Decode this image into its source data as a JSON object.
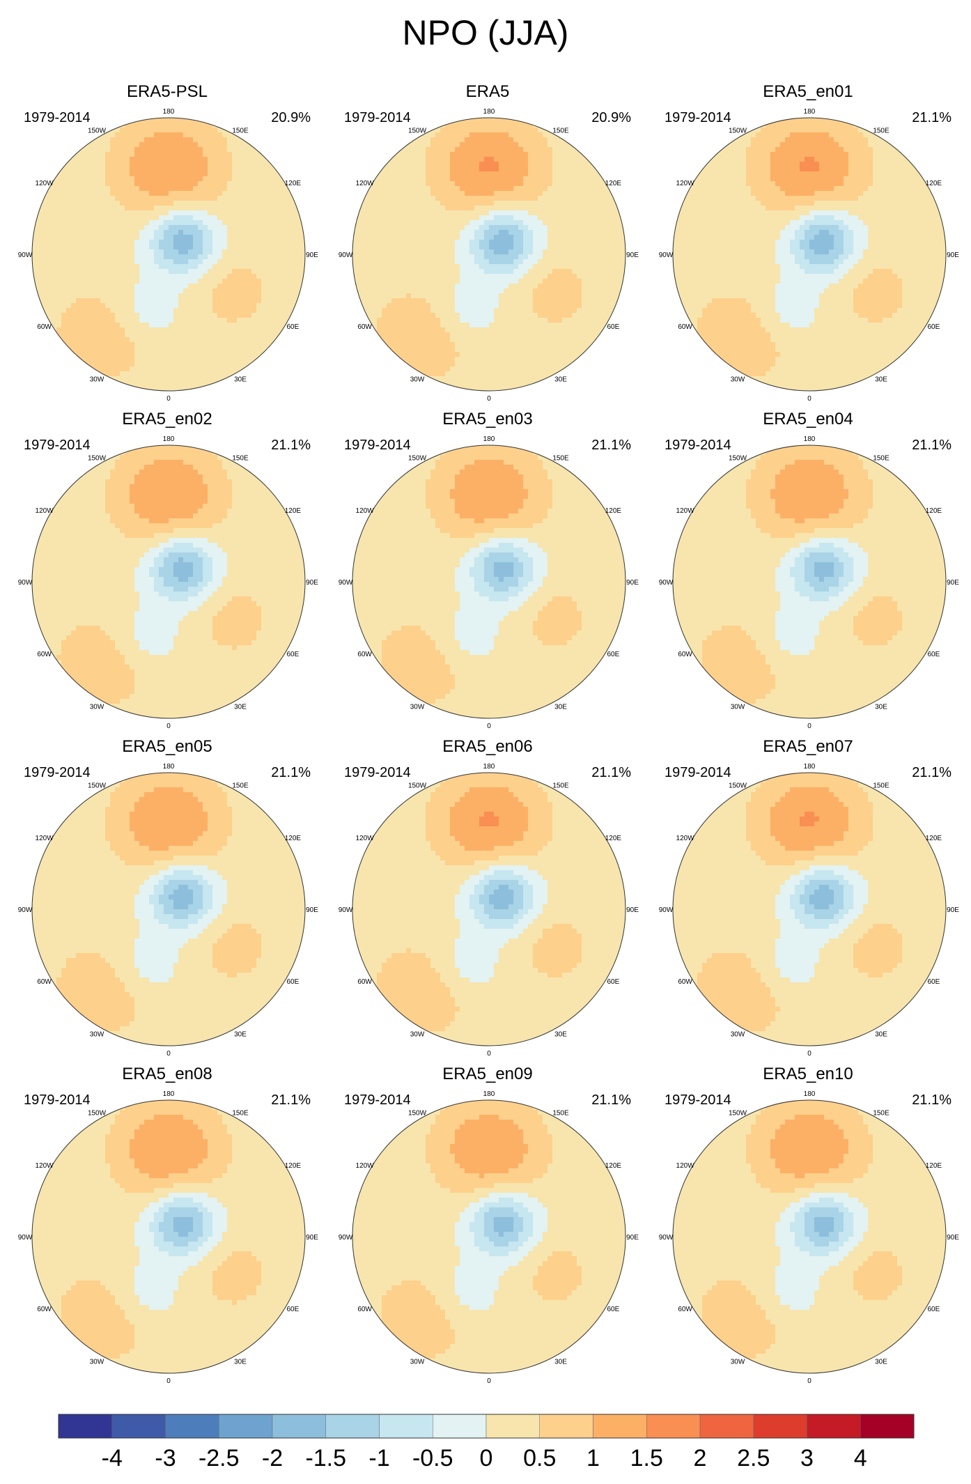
{
  "figure": {
    "title": "NPO (JJA)"
  },
  "chart_data": {
    "type": "heatmap",
    "projection": "north-polar-stereographic",
    "field": "sea level pressure NPO regression pattern",
    "panels": [
      {
        "title": "ERA5-PSL",
        "period": "1979-2014",
        "percent": "20.9%"
      },
      {
        "title": "ERA5",
        "period": "1979-2014",
        "percent": "20.9%"
      },
      {
        "title": "ERA5_en01",
        "period": "1979-2014",
        "percent": "21.1%"
      },
      {
        "title": "ERA5_en02",
        "period": "1979-2014",
        "percent": "21.1%"
      },
      {
        "title": "ERA5_en03",
        "period": "1979-2014",
        "percent": "21.1%"
      },
      {
        "title": "ERA5_en04",
        "period": "1979-2014",
        "percent": "21.1%"
      },
      {
        "title": "ERA5_en05",
        "period": "1979-2014",
        "percent": "21.1%"
      },
      {
        "title": "ERA5_en06",
        "period": "1979-2014",
        "percent": "21.1%"
      },
      {
        "title": "ERA5_en07",
        "period": "1979-2014",
        "percent": "21.1%"
      },
      {
        "title": "ERA5_en08",
        "period": "1979-2014",
        "percent": "21.1%"
      },
      {
        "title": "ERA5_en09",
        "period": "1979-2014",
        "percent": "21.1%"
      },
      {
        "title": "ERA5_en10",
        "period": "1979-2014",
        "percent": "21.1%"
      }
    ],
    "longitude_labels": [
      "180",
      "150E",
      "120E",
      "90E",
      "60E",
      "30E",
      "0",
      "30W",
      "60W",
      "90W",
      "120W",
      "150W"
    ],
    "colorbar": {
      "levels": [
        -4,
        -3,
        -2.5,
        -2,
        -1.5,
        -1,
        -0.5,
        0,
        0.5,
        1,
        1.5,
        2,
        2.5,
        3,
        4
      ],
      "tick_labels": [
        "-4",
        "-3",
        "-2.5",
        "-2",
        "-1.5",
        "-1",
        "-0.5",
        "0",
        "0.5",
        "1",
        "1.5",
        "2",
        "2.5",
        "3",
        "4"
      ],
      "colors": [
        "#313695",
        "#3f5aa8",
        "#4d7ebb",
        "#6ea3cf",
        "#8dbedb",
        "#a9d3e6",
        "#c6e6f0",
        "#e3f2f2",
        "#f7e5ad",
        "#fdd08c",
        "#fcb066",
        "#f98f52",
        "#ef6540",
        "#dd3d2d",
        "#c51b26",
        "#a50026"
      ]
    },
    "pattern": {
      "positive_center_lon": 180,
      "positive_center_lat": 45,
      "positive_peak": 1.5,
      "negative_center_lon": 135,
      "negative_center_lat": 80,
      "negative_peak": -2.0
    }
  }
}
